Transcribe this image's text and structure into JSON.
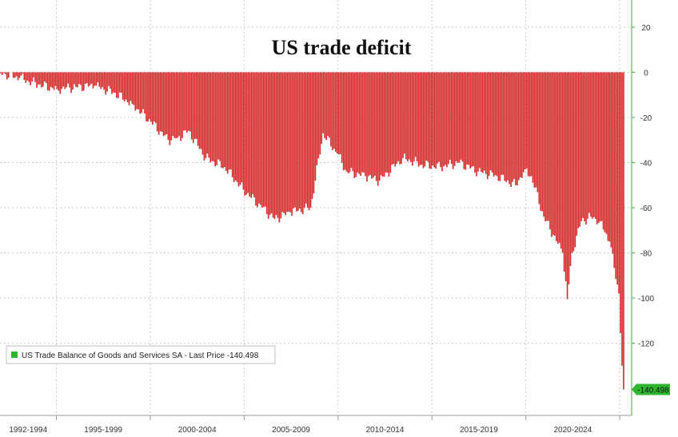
{
  "chart_data": {
    "type": "bar",
    "title": "US trade deficit",
    "xlabel": "",
    "ylabel": "",
    "ylim": [
      -152,
      32
    ],
    "y_ticks": [
      20,
      0,
      -20,
      -40,
      -60,
      -80,
      -100,
      -120
    ],
    "y_axis_side": "right",
    "x_tick_labels": [
      "1992-1994",
      "1995-1999",
      "2000-2004",
      "2005-2009",
      "2010-2014",
      "2015-2019",
      "2020-2024"
    ],
    "grid": true,
    "legend_position": "bottom-left",
    "bar_color": "#d42a2a",
    "legend_swatch_color": "#2fb52f",
    "last_value_tag_color": "#2fb52f",
    "x_start": "1992-01",
    "x_end": "2025-03",
    "series": [
      {
        "name": "US Trade Balance of Goods and Services SA - Last Price -140.498",
        "last_value_label": "-140.498",
        "anchors": [
          [
            "1992-01",
            -0.5
          ],
          [
            "1993-01",
            -2.5
          ],
          [
            "1994-01",
            -5.5
          ],
          [
            "1995-01",
            -7.5
          ],
          [
            "1996-01",
            -6.5
          ],
          [
            "1997-01",
            -6.0
          ],
          [
            "1998-01",
            -9.0
          ],
          [
            "1999-01",
            -14.0
          ],
          [
            "2000-01",
            -22.0
          ],
          [
            "2000-12",
            -30.0
          ],
          [
            "2001-06",
            -29.0
          ],
          [
            "2002-01",
            -26.0
          ],
          [
            "2002-12",
            -38.0
          ],
          [
            "2003-12",
            -42.0
          ],
          [
            "2004-12",
            -52.0
          ],
          [
            "2005-12",
            -60.0
          ],
          [
            "2006-08",
            -65.0
          ],
          [
            "2007-06",
            -62.0
          ],
          [
            "2008-07",
            -60.0
          ],
          [
            "2009-03",
            -27.0
          ],
          [
            "2009-12",
            -36.0
          ],
          [
            "2010-06",
            -44.0
          ],
          [
            "2011-06",
            -46.0
          ],
          [
            "2012-03",
            -48.0
          ],
          [
            "2013-06",
            -38.0
          ],
          [
            "2014-06",
            -41.0
          ],
          [
            "2015-06",
            -42.0
          ],
          [
            "2016-06",
            -40.0
          ],
          [
            "2017-06",
            -44.0
          ],
          [
            "2018-06",
            -46.0
          ],
          [
            "2019-06",
            -50.0
          ],
          [
            "2019-12",
            -43.0
          ],
          [
            "2020-04",
            -46.0
          ],
          [
            "2020-12",
            -64.0
          ],
          [
            "2021-06",
            -72.0
          ],
          [
            "2021-12",
            -80.0
          ],
          [
            "2022-03",
            -100.5
          ],
          [
            "2022-06",
            -80.0
          ],
          [
            "2022-12",
            -66.0
          ],
          [
            "2023-06",
            -64.0
          ],
          [
            "2023-12",
            -66.0
          ],
          [
            "2024-06",
            -75.0
          ],
          [
            "2024-12",
            -98.0
          ],
          [
            "2025-02",
            -130.0
          ],
          [
            "2025-03",
            -140.498
          ]
        ]
      }
    ]
  }
}
